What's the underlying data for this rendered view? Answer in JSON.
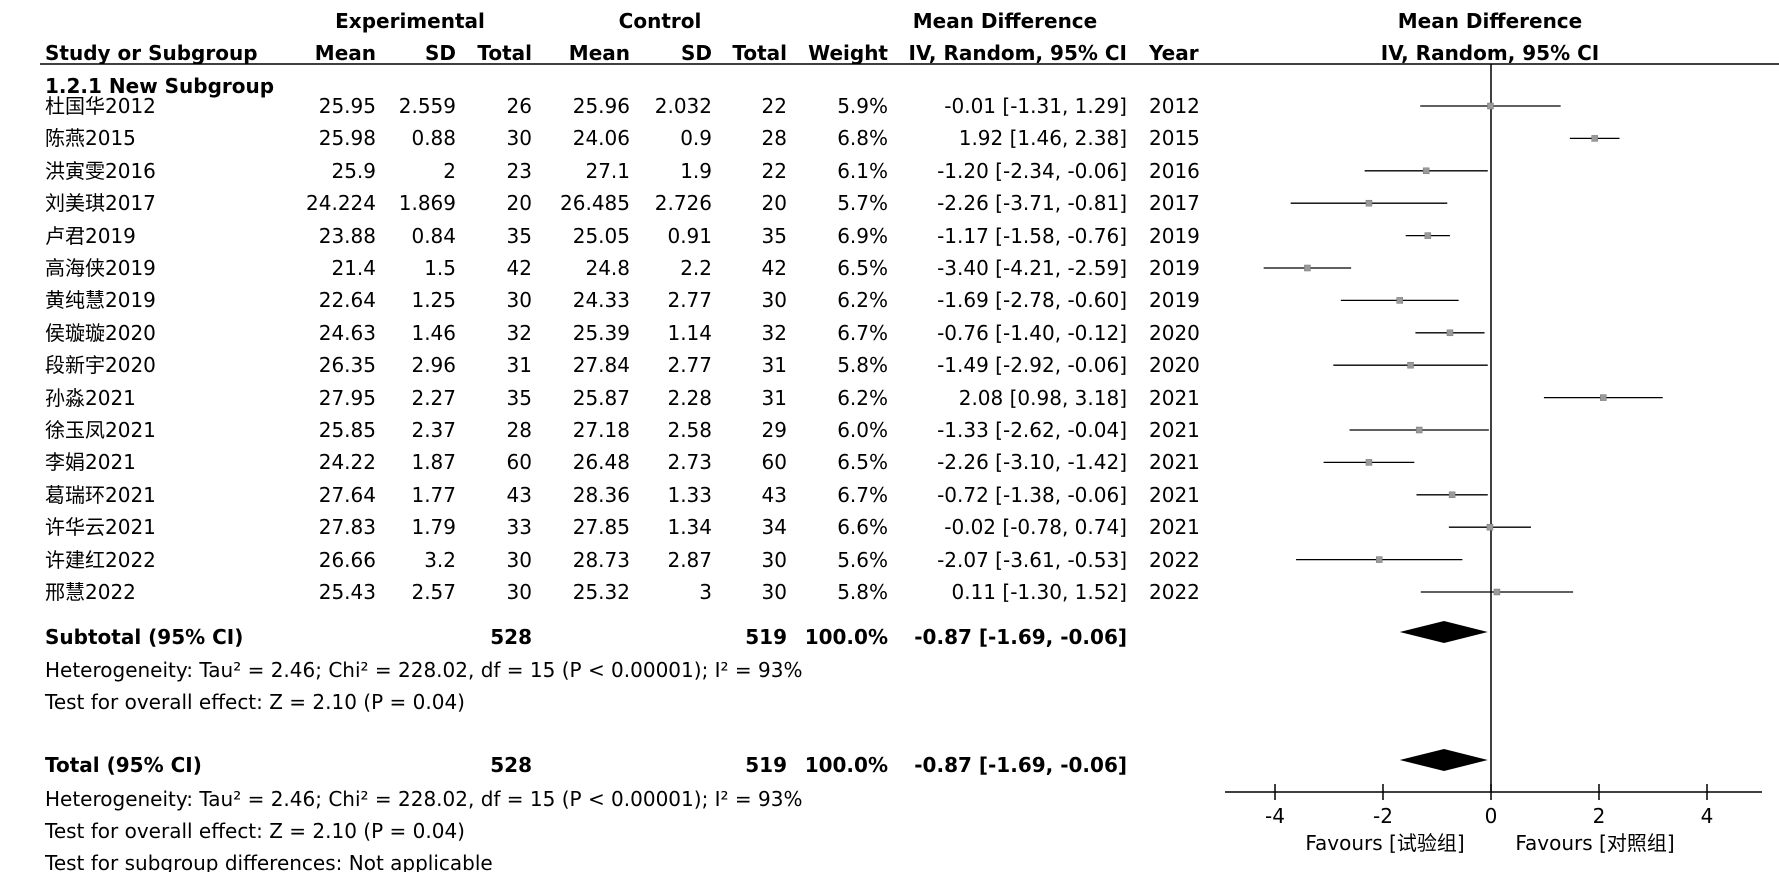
{
  "header": {
    "experimental": "Experimental",
    "control": "Control",
    "mean_difference": "Mean Difference",
    "plot_title": "Mean Difference",
    "study": "Study or Subgroup",
    "mean": "Mean",
    "sd": "SD",
    "total": "Total",
    "mean2": "Mean",
    "sd2": "SD",
    "total2": "Total",
    "weight": "Weight",
    "method": "IV, Random, 95% CI",
    "year": "Year",
    "plot_method": "IV, Random, 95% CI"
  },
  "subgroup_label": "1.2.1 New Subgroup",
  "studies": [
    {
      "name": "杜国华2012",
      "e_mean": "25.95",
      "e_sd": "2.559",
      "e_total": "26",
      "c_mean": "25.96",
      "c_sd": "2.032",
      "c_total": "22",
      "weight": "5.9%",
      "ci_text": "-0.01 [-1.31, 1.29]",
      "year": "2012",
      "md": -0.01,
      "lo": -1.31,
      "hi": 1.29
    },
    {
      "name": "陈燕2015",
      "e_mean": "25.98",
      "e_sd": "0.88",
      "e_total": "30",
      "c_mean": "24.06",
      "c_sd": "0.9",
      "c_total": "28",
      "weight": "6.8%",
      "ci_text": "1.92 [1.46, 2.38]",
      "year": "2015",
      "md": 1.92,
      "lo": 1.46,
      "hi": 2.38
    },
    {
      "name": "洪寅雯2016",
      "e_mean": "25.9",
      "e_sd": "2",
      "e_total": "23",
      "c_mean": "27.1",
      "c_sd": "1.9",
      "c_total": "22",
      "weight": "6.1%",
      "ci_text": "-1.20 [-2.34, -0.06]",
      "year": "2016",
      "md": -1.2,
      "lo": -2.34,
      "hi": -0.06
    },
    {
      "name": "刘美琪2017",
      "e_mean": "24.224",
      "e_sd": "1.869",
      "e_total": "20",
      "c_mean": "26.485",
      "c_sd": "2.726",
      "c_total": "20",
      "weight": "5.7%",
      "ci_text": "-2.26 [-3.71, -0.81]",
      "year": "2017",
      "md": -2.26,
      "lo": -3.71,
      "hi": -0.81
    },
    {
      "name": "卢君2019",
      "e_mean": "23.88",
      "e_sd": "0.84",
      "e_total": "35",
      "c_mean": "25.05",
      "c_sd": "0.91",
      "c_total": "35",
      "weight": "6.9%",
      "ci_text": "-1.17 [-1.58, -0.76]",
      "year": "2019",
      "md": -1.17,
      "lo": -1.58,
      "hi": -0.76
    },
    {
      "name": "高海侠2019",
      "e_mean": "21.4",
      "e_sd": "1.5",
      "e_total": "42",
      "c_mean": "24.8",
      "c_sd": "2.2",
      "c_total": "42",
      "weight": "6.5%",
      "ci_text": "-3.40 [-4.21, -2.59]",
      "year": "2019",
      "md": -3.4,
      "lo": -4.21,
      "hi": -2.59
    },
    {
      "name": "黄纯慧2019",
      "e_mean": "22.64",
      "e_sd": "1.25",
      "e_total": "30",
      "c_mean": "24.33",
      "c_sd": "2.77",
      "c_total": "30",
      "weight": "6.2%",
      "ci_text": "-1.69 [-2.78, -0.60]",
      "year": "2019",
      "md": -1.69,
      "lo": -2.78,
      "hi": -0.6
    },
    {
      "name": "侯璇璇2020",
      "e_mean": "24.63",
      "e_sd": "1.46",
      "e_total": "32",
      "c_mean": "25.39",
      "c_sd": "1.14",
      "c_total": "32",
      "weight": "6.7%",
      "ci_text": "-0.76 [-1.40, -0.12]",
      "year": "2020",
      "md": -0.76,
      "lo": -1.4,
      "hi": -0.12
    },
    {
      "name": "段新宇2020",
      "e_mean": "26.35",
      "e_sd": "2.96",
      "e_total": "31",
      "c_mean": "27.84",
      "c_sd": "2.77",
      "c_total": "31",
      "weight": "5.8%",
      "ci_text": "-1.49 [-2.92, -0.06]",
      "year": "2020",
      "md": -1.49,
      "lo": -2.92,
      "hi": -0.06
    },
    {
      "name": "孙淼2021",
      "e_mean": "27.95",
      "e_sd": "2.27",
      "e_total": "35",
      "c_mean": "25.87",
      "c_sd": "2.28",
      "c_total": "31",
      "weight": "6.2%",
      "ci_text": "2.08 [0.98, 3.18]",
      "year": "2021",
      "md": 2.08,
      "lo": 0.98,
      "hi": 3.18
    },
    {
      "name": "徐玉凤2021",
      "e_mean": "25.85",
      "e_sd": "2.37",
      "e_total": "28",
      "c_mean": "27.18",
      "c_sd": "2.58",
      "c_total": "29",
      "weight": "6.0%",
      "ci_text": "-1.33 [-2.62, -0.04]",
      "year": "2021",
      "md": -1.33,
      "lo": -2.62,
      "hi": -0.04
    },
    {
      "name": "李娟2021",
      "e_mean": "24.22",
      "e_sd": "1.87",
      "e_total": "60",
      "c_mean": "26.48",
      "c_sd": "2.73",
      "c_total": "60",
      "weight": "6.5%",
      "ci_text": "-2.26 [-3.10, -1.42]",
      "year": "2021",
      "md": -2.26,
      "lo": -3.1,
      "hi": -1.42
    },
    {
      "name": "葛瑞环2021",
      "e_mean": "27.64",
      "e_sd": "1.77",
      "e_total": "43",
      "c_mean": "28.36",
      "c_sd": "1.33",
      "c_total": "43",
      "weight": "6.7%",
      "ci_text": "-0.72 [-1.38, -0.06]",
      "year": "2021",
      "md": -0.72,
      "lo": -1.38,
      "hi": -0.06
    },
    {
      "name": "许华云2021",
      "e_mean": "27.83",
      "e_sd": "1.79",
      "e_total": "33",
      "c_mean": "27.85",
      "c_sd": "1.34",
      "c_total": "34",
      "weight": "6.6%",
      "ci_text": "-0.02 [-0.78, 0.74]",
      "year": "2021",
      "md": -0.02,
      "lo": -0.78,
      "hi": 0.74
    },
    {
      "name": "许建红2022",
      "e_mean": "26.66",
      "e_sd": "3.2",
      "e_total": "30",
      "c_mean": "28.73",
      "c_sd": "2.87",
      "c_total": "30",
      "weight": "5.6%",
      "ci_text": "-2.07 [-3.61, -0.53]",
      "year": "2022",
      "md": -2.07,
      "lo": -3.61,
      "hi": -0.53
    },
    {
      "name": "邢慧2022",
      "e_mean": "25.43",
      "e_sd": "2.57",
      "e_total": "30",
      "c_mean": "25.32",
      "c_sd": "3",
      "c_total": "30",
      "weight": "5.8%",
      "ci_text": "0.11 [-1.30, 1.52]",
      "year": "2022",
      "md": 0.11,
      "lo": -1.3,
      "hi": 1.52
    }
  ],
  "subtotal": {
    "label": "Subtotal (95% CI)",
    "e_total": "528",
    "c_total": "519",
    "weight": "100.0%",
    "ci_text": "-0.87 [-1.69, -0.06]",
    "md": -0.87,
    "lo": -1.69,
    "hi": -0.06,
    "heterogeneity": "Heterogeneity: Tau² = 2.46; Chi² = 228.02, df = 15 (P < 0.00001); I² = 93%",
    "overall": "Test for overall effect: Z = 2.10 (P = 0.04)"
  },
  "total": {
    "label": "Total (95% CI)",
    "e_total": "528",
    "c_total": "519",
    "weight": "100.0%",
    "ci_text": "-0.87 [-1.69, -0.06]",
    "md": -0.87,
    "lo": -1.69,
    "hi": -0.06,
    "heterogeneity": "Heterogeneity: Tau² = 2.46; Chi² = 228.02, df = 15 (P < 0.00001); I² = 93%",
    "overall": "Test for overall effect: Z = 2.10 (P = 0.04)",
    "subgroup_diff": "Test for subgroup differences: Not applicable"
  },
  "axis": {
    "ticks": [
      -4,
      -2,
      0,
      2,
      4
    ],
    "tick_labels": [
      "-4",
      "-2",
      "0",
      "2",
      "4"
    ],
    "favours_left": "Favours [试验组]",
    "favours_right": "Favours [对照组]"
  },
  "chart_data": {
    "type": "forest",
    "title": "Mean Difference",
    "subtitle": "IV, Random, 95% CI",
    "xlim": [
      -5,
      5
    ],
    "grid": false,
    "categories": [
      "杜国华2012",
      "陈燕2015",
      "洪寅雯2016",
      "刘美琪2017",
      "卢君2019",
      "高海侠2019",
      "黄纯慧2019",
      "侯璇璇2020",
      "段新宇2020",
      "孙淼2021",
      "徐玉凤2021",
      "李娟2021",
      "葛瑞环2021",
      "许华云2021",
      "许建红2022",
      "邢慧2022"
    ],
    "series": [
      {
        "values": [
          -0.01,
          1.92,
          -1.2,
          -2.26,
          -1.17,
          -3.4,
          -1.69,
          -0.76,
          -1.49,
          2.08,
          -1.33,
          -2.26,
          -0.72,
          -0.02,
          -2.07,
          0.11
        ]
      }
    ],
    "ci_lower": [
      -1.31,
      1.46,
      -2.34,
      -3.71,
      -1.58,
      -4.21,
      -2.78,
      -1.4,
      -2.92,
      0.98,
      -2.62,
      -3.1,
      -1.38,
      -0.78,
      -3.61,
      -1.3
    ],
    "ci_upper": [
      1.29,
      2.38,
      -0.06,
      -0.81,
      -0.76,
      -2.59,
      -0.6,
      -0.12,
      -0.06,
      3.18,
      -0.04,
      -1.42,
      -0.06,
      0.74,
      -0.53,
      1.52
    ],
    "pooled": [
      {
        "name": "Subtotal (95% CI)",
        "value": -0.87,
        "lower": -1.69,
        "upper": -0.06
      },
      {
        "name": "Total (95% CI)",
        "value": -0.87,
        "lower": -1.69,
        "upper": -0.06
      }
    ]
  }
}
